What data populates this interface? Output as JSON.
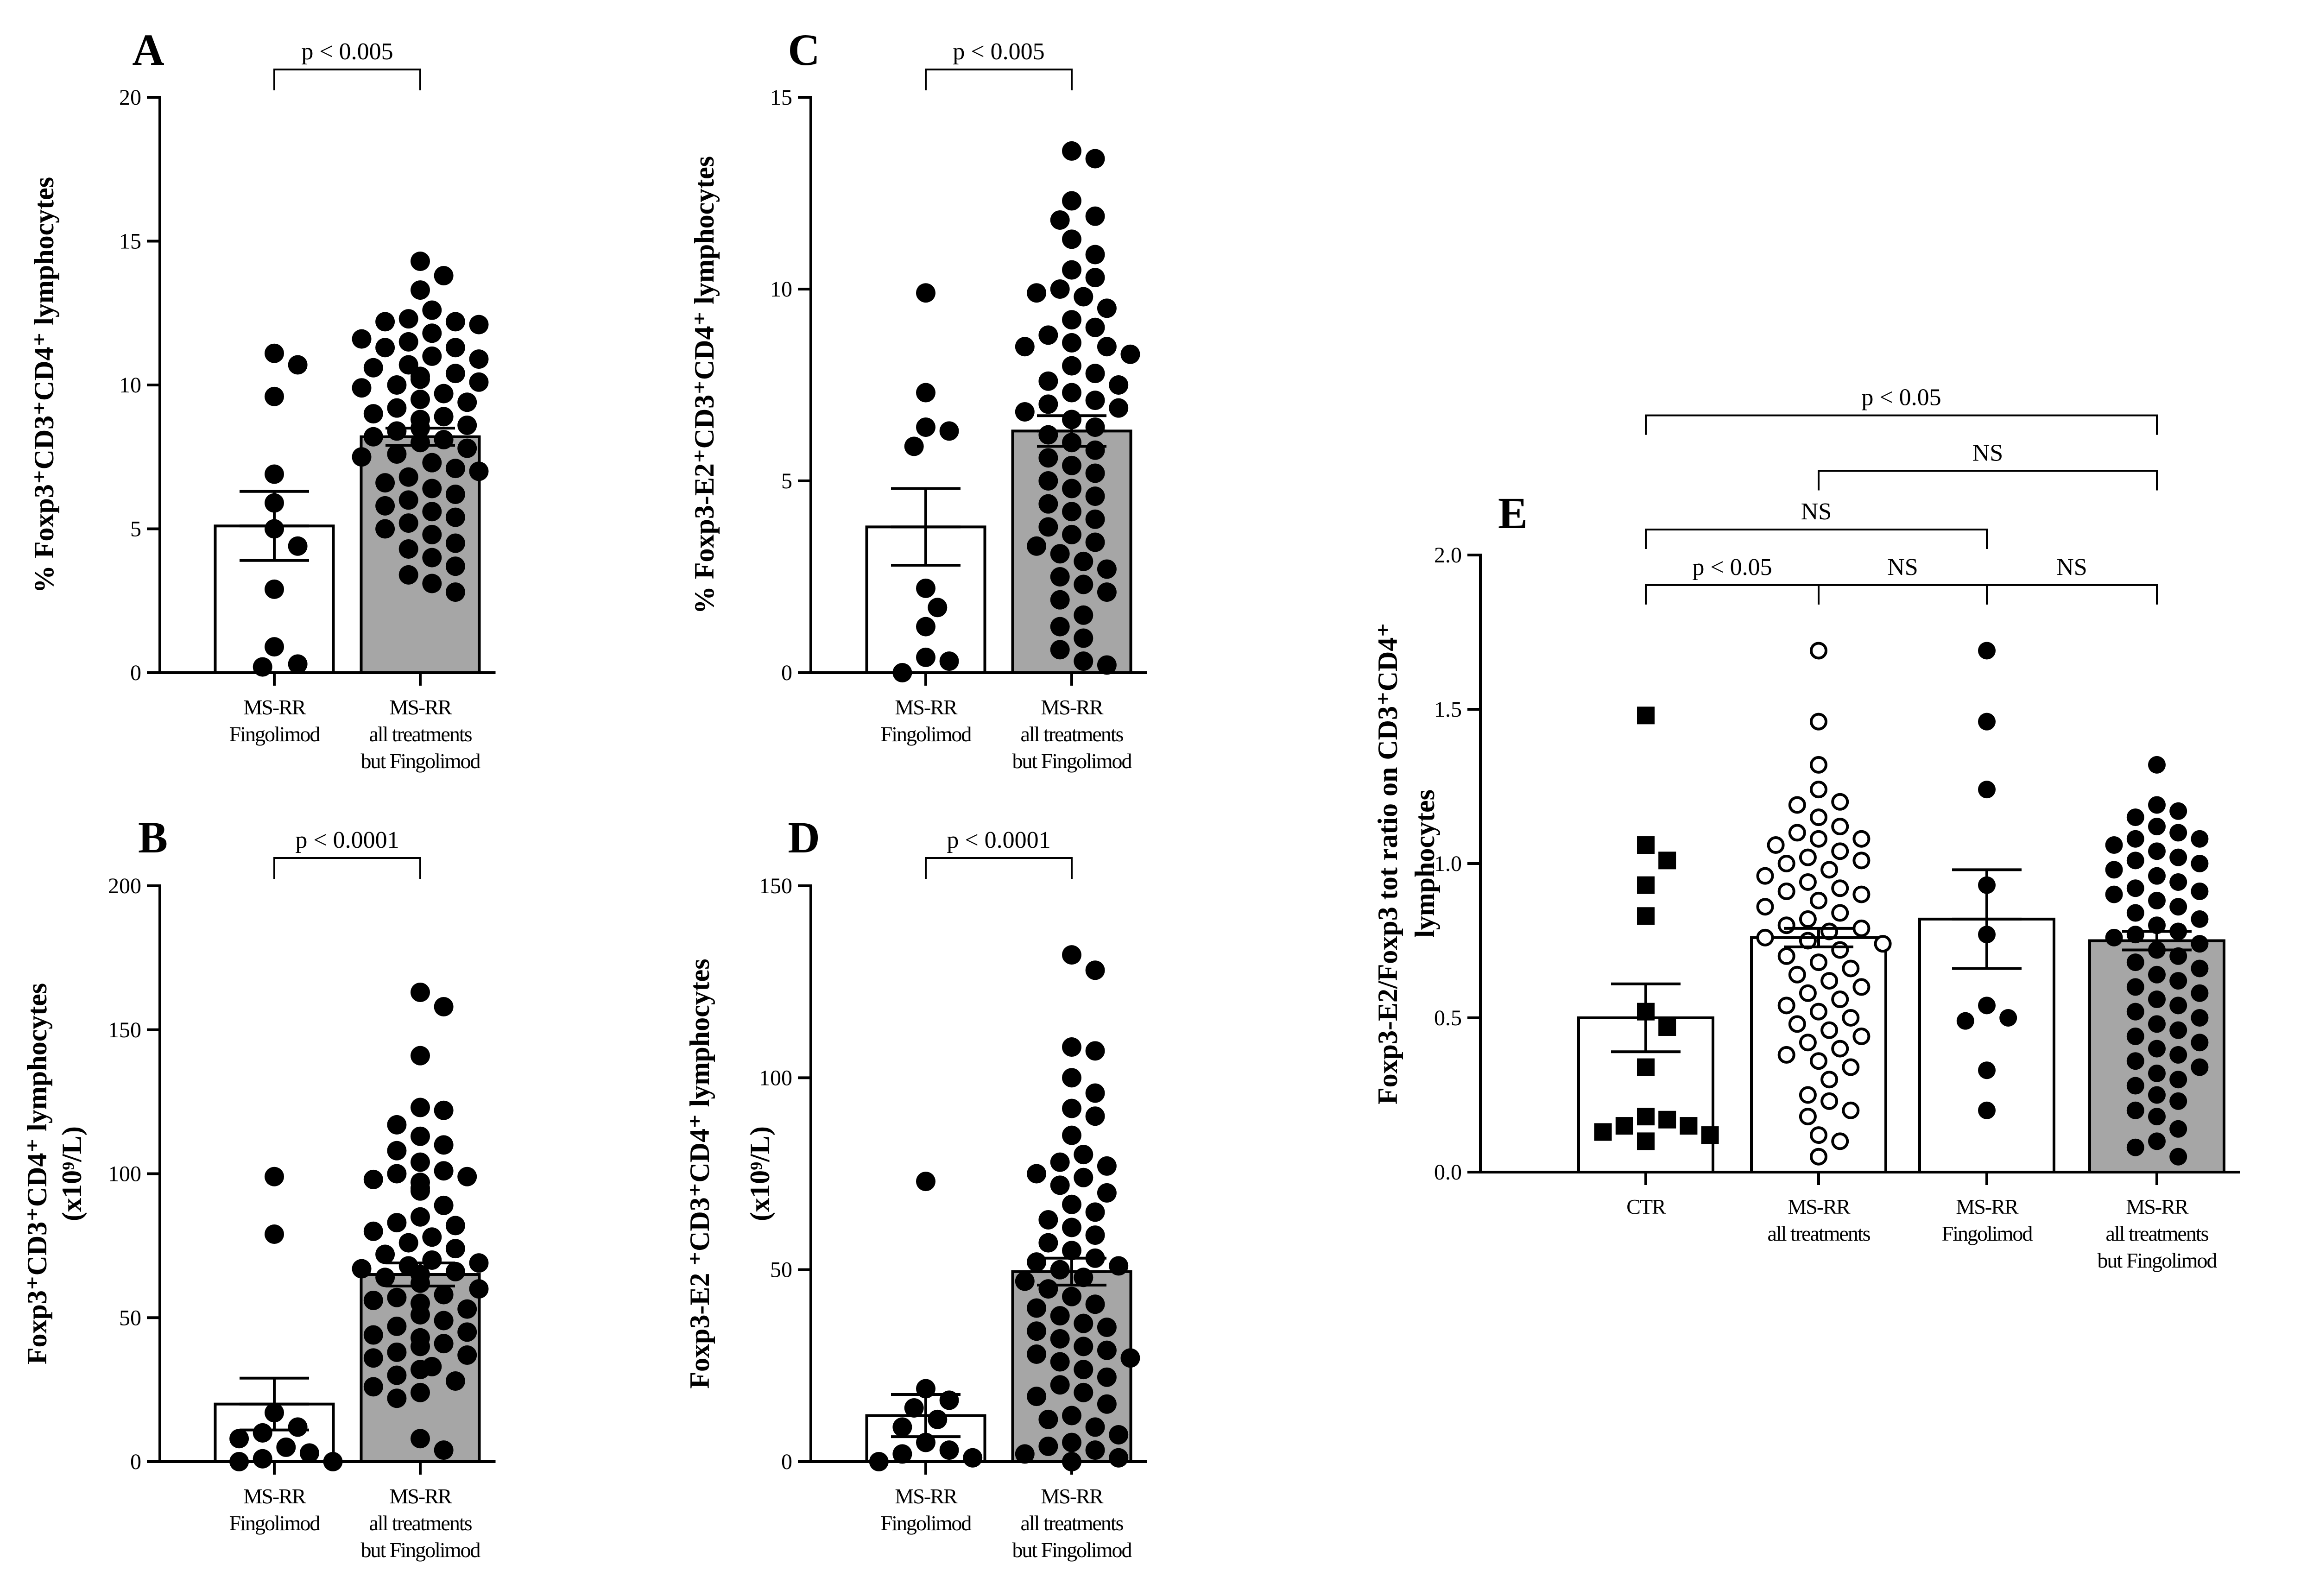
{
  "chart_data": [
    {
      "id": "A",
      "type": "bar",
      "panel_letter": "A",
      "ylabel": "% Foxp3⁺CD3⁺CD4⁺ lymphocytes",
      "ylim": [
        0,
        20
      ],
      "yticks": [
        0,
        5,
        10,
        15,
        20
      ],
      "categories": [
        {
          "lines": [
            "MS-RR",
            "Fingolimod"
          ]
        },
        {
          "lines": [
            "MS-RR",
            "all treatments",
            "but Fingolimod"
          ]
        }
      ],
      "series": [
        {
          "name": "MS-RR Fingolimod",
          "fill": "#ffffff",
          "marker": "circle-filled",
          "mean": 5.1,
          "sem": 1.2,
          "points": [
            11.1,
            10.7,
            9.6,
            6.9,
            5.9,
            5.0,
            4.4,
            2.9,
            0.9,
            0.3,
            0.2
          ]
        },
        {
          "name": "MS-RR all treatments but Fingolimod",
          "fill": "#a6a6a6",
          "marker": "circle-filled",
          "mean": 8.2,
          "sem": 0.3,
          "points": [
            14.3,
            13.8,
            13.3,
            12.6,
            12.3,
            12.2,
            12.2,
            12.1,
            11.8,
            11.6,
            11.5,
            11.3,
            11.3,
            11.0,
            10.9,
            10.7,
            10.6,
            10.4,
            10.3,
            10.2,
            10.1,
            10.0,
            9.9,
            9.7,
            9.5,
            9.4,
            9.2,
            9.0,
            8.9,
            8.8,
            8.6,
            8.5,
            8.4,
            8.2,
            8.1,
            8.0,
            7.8,
            7.6,
            7.5,
            7.3,
            7.1,
            7.0,
            6.8,
            6.6,
            6.4,
            6.2,
            6.0,
            5.8,
            5.6,
            5.4,
            5.2,
            5.0,
            4.8,
            4.5,
            4.3,
            4.0,
            3.7,
            3.4,
            3.1,
            2.8
          ]
        }
      ],
      "brackets": [
        {
          "from": 0,
          "to": 1,
          "level": 20,
          "label": "p < 0.005"
        }
      ]
    },
    {
      "id": "B",
      "type": "bar",
      "panel_letter": "B",
      "ylabel": "Foxp3⁺CD3⁺CD4⁺ lymphocytes",
      "ylabel2": "(x10⁹/L)",
      "ylim": [
        0,
        200
      ],
      "yticks": [
        0,
        50,
        100,
        150,
        200
      ],
      "categories": [
        {
          "lines": [
            "MS-RR",
            "Fingolimod"
          ]
        },
        {
          "lines": [
            "MS-RR",
            "all treatments",
            "but Fingolimod"
          ]
        }
      ],
      "series": [
        {
          "name": "MS-RR Fingolimod",
          "fill": "#ffffff",
          "marker": "circle-filled",
          "mean": 20,
          "sem": 9,
          "points": [
            99,
            79,
            17,
            12,
            10,
            8,
            5,
            3,
            1,
            0,
            0
          ]
        },
        {
          "name": "MS-RR all treatments but Fingolimod",
          "fill": "#a6a6a6",
          "marker": "circle-filled",
          "mean": 65,
          "sem": 4,
          "points": [
            163,
            158,
            141,
            123,
            122,
            117,
            113,
            110,
            108,
            104,
            101,
            100,
            99,
            98,
            97,
            95,
            94,
            89,
            85,
            83,
            82,
            80,
            78,
            76,
            74,
            72,
            70,
            69,
            68,
            67,
            66,
            65,
            64,
            62,
            60,
            58,
            57,
            56,
            55,
            53,
            51,
            49,
            47,
            45,
            44,
            43,
            41,
            40,
            38,
            37,
            36,
            33,
            32,
            30,
            28,
            26,
            24,
            22,
            8,
            4
          ]
        }
      ],
      "brackets": [
        {
          "from": 0,
          "to": 1,
          "level": 200,
          "label": "p < 0.0001"
        }
      ]
    },
    {
      "id": "C",
      "type": "bar",
      "panel_letter": "C",
      "ylabel": "% Foxp3-E2⁺CD3⁺CD4⁺ lymphocytes",
      "ylim": [
        0,
        15
      ],
      "yticks": [
        0,
        5,
        10,
        15
      ],
      "categories": [
        {
          "lines": [
            "MS-RR",
            "Fingolimod"
          ]
        },
        {
          "lines": [
            "MS-RR",
            "all treatments",
            "but Fingolimod"
          ]
        }
      ],
      "series": [
        {
          "name": "MS-RR Fingolimod",
          "fill": "#ffffff",
          "marker": "circle-filled",
          "mean": 3.8,
          "sem": 1.0,
          "points": [
            9.9,
            7.3,
            6.4,
            6.3,
            5.9,
            2.2,
            1.7,
            1.2,
            0.4,
            0.3,
            0.0
          ]
        },
        {
          "name": "MS-RR all treatments but Fingolimod",
          "fill": "#a6a6a6",
          "marker": "circle-filled",
          "mean": 6.3,
          "sem": 0.4,
          "points": [
            13.6,
            13.4,
            12.3,
            11.9,
            11.8,
            11.3,
            10.9,
            10.5,
            10.3,
            10.0,
            9.9,
            9.8,
            9.5,
            9.2,
            9.0,
            8.8,
            8.6,
            8.5,
            8.5,
            8.3,
            8.0,
            7.8,
            7.6,
            7.5,
            7.3,
            7.1,
            7.0,
            6.9,
            6.8,
            6.6,
            6.4,
            6.2,
            6.0,
            5.8,
            5.6,
            5.4,
            5.2,
            5.0,
            4.8,
            4.6,
            4.4,
            4.2,
            4.0,
            3.8,
            3.6,
            3.4,
            3.3,
            3.1,
            2.9,
            2.7,
            2.5,
            2.3,
            2.1,
            1.9,
            1.5,
            1.2,
            0.9,
            0.6,
            0.3,
            0.2
          ]
        }
      ],
      "brackets": [
        {
          "from": 0,
          "to": 1,
          "level": 15,
          "label": "p < 0.005"
        }
      ]
    },
    {
      "id": "D",
      "type": "bar",
      "panel_letter": "D",
      "ylabel": "Foxp3-E2 ⁺CD3⁺CD4⁺ lymphocytes",
      "ylabel2": "(x10⁹/L)",
      "ylim": [
        0,
        150
      ],
      "yticks": [
        0,
        50,
        100,
        150
      ],
      "categories": [
        {
          "lines": [
            "MS-RR",
            "Fingolimod"
          ]
        },
        {
          "lines": [
            "MS-RR",
            "all treatments",
            "but Fingolimod"
          ]
        }
      ],
      "series": [
        {
          "name": "MS-RR Fingolimod",
          "fill": "#ffffff",
          "marker": "circle-filled",
          "mean": 12,
          "sem": 5.5,
          "points": [
            73,
            19,
            16,
            14,
            11,
            9,
            5,
            3,
            2,
            1,
            0
          ]
        },
        {
          "name": "MS-RR all treatments but Fingolimod",
          "fill": "#a6a6a6",
          "marker": "circle-filled",
          "mean": 49.5,
          "sem": 3.5,
          "points": [
            132,
            128,
            108,
            107,
            100,
            96,
            92,
            90,
            85,
            80,
            78,
            77,
            75,
            74,
            72,
            70,
            67,
            65,
            63,
            61,
            59,
            57,
            55,
            53,
            52,
            51,
            50,
            48,
            47,
            45,
            43,
            41,
            40,
            38,
            36,
            35,
            34,
            32,
            30,
            29,
            28,
            27,
            26,
            24,
            22,
            20,
            18,
            17,
            15,
            12,
            11,
            9,
            7,
            5,
            4,
            3,
            2,
            1,
            0,
            0
          ]
        }
      ],
      "brackets": [
        {
          "from": 0,
          "to": 1,
          "level": 150,
          "label": "p < 0.0001"
        }
      ]
    },
    {
      "id": "E",
      "type": "bar",
      "panel_letter": "E",
      "ylabel": "Foxp3-E2/Foxp3 tot ratio  on CD3⁺CD4⁺",
      "ylabel2": "lymphocytes",
      "ylim": [
        0,
        2.0
      ],
      "yticks": [
        "0.0",
        "0.5",
        "1.0",
        "1.5",
        "2.0"
      ],
      "categories": [
        {
          "lines": [
            "CTR"
          ]
        },
        {
          "lines": [
            "MS-RR",
            "all treatments"
          ]
        },
        {
          "lines": [
            "MS-RR",
            "Fingolimod"
          ]
        },
        {
          "lines": [
            "MS-RR",
            "all treatments",
            "but Fingolimod"
          ]
        }
      ],
      "series": [
        {
          "name": "CTR",
          "fill": "#ffffff",
          "marker": "square-filled",
          "mean": 0.5,
          "sem": 0.11,
          "points": [
            1.48,
            1.06,
            1.01,
            0.93,
            0.83,
            0.52,
            0.47,
            0.34,
            0.18,
            0.17,
            0.15,
            0.15,
            0.13,
            0.12,
            0.1
          ]
        },
        {
          "name": "MS-RR all treatments",
          "fill": "#ffffff",
          "marker": "circle-open",
          "mean": 0.76,
          "sem": 0.03,
          "points": [
            1.69,
            1.46,
            1.32,
            1.24,
            1.2,
            1.19,
            1.15,
            1.12,
            1.1,
            1.08,
            1.08,
            1.06,
            1.04,
            1.02,
            1.01,
            1.0,
            0.98,
            0.96,
            0.94,
            0.92,
            0.91,
            0.9,
            0.88,
            0.86,
            0.84,
            0.82,
            0.8,
            0.79,
            0.78,
            0.76,
            0.75,
            0.74,
            0.72,
            0.7,
            0.68,
            0.66,
            0.64,
            0.62,
            0.6,
            0.58,
            0.56,
            0.54,
            0.52,
            0.5,
            0.48,
            0.46,
            0.44,
            0.42,
            0.4,
            0.38,
            0.36,
            0.34,
            0.3,
            0.25,
            0.23,
            0.2,
            0.18,
            0.12,
            0.1,
            0.05
          ]
        },
        {
          "name": "MS-RR Fingolimod",
          "fill": "#ffffff",
          "marker": "circle-filled",
          "mean": 0.82,
          "sem": 0.16,
          "points": [
            1.69,
            1.46,
            1.24,
            0.93,
            0.77,
            0.54,
            0.5,
            0.49,
            0.33,
            0.2
          ]
        },
        {
          "name": "MS-RR all treatments but Fingolimod",
          "fill": "#a6a6a6",
          "marker": "circle-filled",
          "mean": 0.75,
          "sem": 0.03,
          "points": [
            1.32,
            1.19,
            1.17,
            1.15,
            1.12,
            1.1,
            1.08,
            1.08,
            1.06,
            1.04,
            1.02,
            1.01,
            1.0,
            0.98,
            0.96,
            0.94,
            0.92,
            0.91,
            0.9,
            0.88,
            0.86,
            0.84,
            0.82,
            0.8,
            0.78,
            0.77,
            0.76,
            0.74,
            0.72,
            0.7,
            0.68,
            0.66,
            0.64,
            0.62,
            0.6,
            0.58,
            0.56,
            0.54,
            0.52,
            0.5,
            0.48,
            0.46,
            0.44,
            0.42,
            0.4,
            0.38,
            0.36,
            0.34,
            0.32,
            0.3,
            0.28,
            0.25,
            0.23,
            0.2,
            0.18,
            0.14,
            0.1,
            0.08,
            0.05
          ]
        }
      ],
      "brackets": [
        {
          "from": 0,
          "to": 3,
          "level": 2.4,
          "label": "p < 0.05"
        },
        {
          "from": 1,
          "to": 3,
          "level": 2.22,
          "label": "NS"
        },
        {
          "from": 0,
          "to": 2,
          "level": 2.03,
          "label": "NS"
        },
        {
          "from": 0,
          "to": 1,
          "level": 1.85,
          "label": "p < 0.05"
        },
        {
          "from": 1,
          "to": 2,
          "level": 1.85,
          "label": "NS"
        },
        {
          "from": 2,
          "to": 3,
          "level": 1.85,
          "label": "NS"
        }
      ]
    }
  ]
}
